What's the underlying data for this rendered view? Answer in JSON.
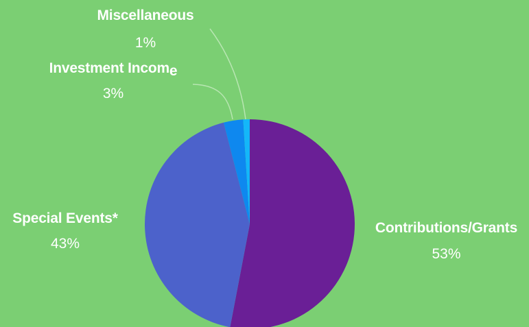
{
  "colors": {
    "background": "#7BCF73",
    "label_text": "#ffffff",
    "leader_line": "#b8e6b2"
  },
  "chart_data": {
    "type": "pie",
    "start": "12 o'clock",
    "direction": "clockwise",
    "slices": [
      {
        "label": "Contributions/Grants",
        "pct_label": "53%",
        "value": 53,
        "color": "#6A1F96"
      },
      {
        "label": "Special Events*",
        "pct_label": "43%",
        "value": 43,
        "color": "#4C62CB"
      },
      {
        "label": "Investment Incom",
        "label_suffix": "e",
        "pct_label": "3%",
        "value": 3,
        "color": "#0E88EF"
      },
      {
        "label": "Miscellaneous",
        "pct_label": "1%",
        "value": 1,
        "color": "#14B7F9"
      }
    ]
  }
}
